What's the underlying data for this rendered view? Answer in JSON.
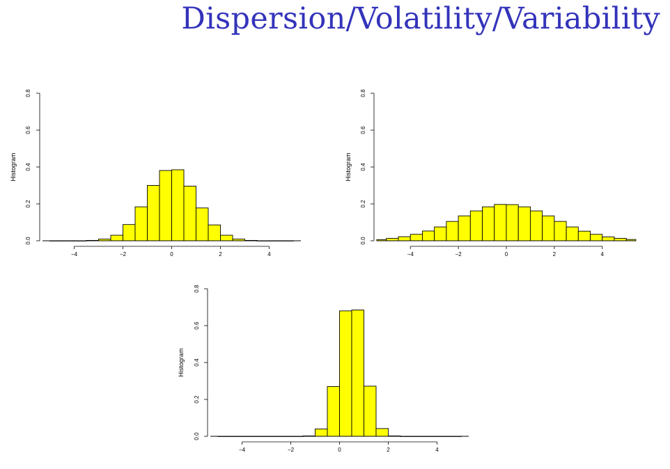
{
  "slide": {
    "title": "Dispersion/Volatility/Variability",
    "title_color": "#3333bb"
  },
  "chart_data": [
    {
      "type": "bar",
      "ylabel": "Histogram",
      "xlabel": "",
      "bar_color": "#ffff00",
      "xlim": [
        -5.3,
        5.3
      ],
      "ylim": [
        0,
        0.8
      ],
      "xticks": [
        -4,
        -2,
        0,
        2,
        4
      ],
      "yticks": [
        0.0,
        0.2,
        0.4,
        0.6,
        0.8
      ],
      "bin_width": 0.5,
      "bins_start": [
        -5.0,
        -4.5,
        -4.0,
        -3.5,
        -3.0,
        -2.5,
        -2.0,
        -1.5,
        -1.0,
        -0.5,
        0.0,
        0.5,
        1.0,
        1.5,
        2.0,
        2.5,
        3.0,
        3.5,
        4.0,
        4.5
      ],
      "values": [
        0.0,
        0.0,
        0.0,
        0.002,
        0.009,
        0.03,
        0.088,
        0.184,
        0.3,
        0.381,
        0.385,
        0.296,
        0.178,
        0.086,
        0.03,
        0.009,
        0.002,
        0.0,
        0.0,
        0.0
      ]
    },
    {
      "type": "bar",
      "ylabel": "Histogram",
      "xlabel": "",
      "bar_color": "#ffff00",
      "xlim": [
        -5.4,
        5.4
      ],
      "ylim": [
        0,
        0.8
      ],
      "xticks": [
        -4,
        -2,
        0,
        2,
        4
      ],
      "yticks": [
        0.0,
        0.2,
        0.4,
        0.6,
        0.8
      ],
      "bin_width": 0.5,
      "bins_start": [
        -5.5,
        -5.0,
        -4.5,
        -4.0,
        -3.5,
        -3.0,
        -2.5,
        -2.0,
        -1.5,
        -1.0,
        -0.5,
        0.0,
        0.5,
        1.0,
        1.5,
        2.0,
        2.5,
        3.0,
        3.5,
        4.0,
        4.5,
        5.0
      ],
      "values": [
        0.006,
        0.013,
        0.022,
        0.035,
        0.053,
        0.075,
        0.105,
        0.135,
        0.162,
        0.184,
        0.197,
        0.196,
        0.184,
        0.162,
        0.135,
        0.105,
        0.075,
        0.052,
        0.035,
        0.021,
        0.013,
        0.007
      ]
    },
    {
      "type": "bar",
      "ylabel": "Histogram",
      "xlabel": "",
      "bar_color": "#ffff00",
      "xlim": [
        -5.3,
        5.3
      ],
      "ylim": [
        0,
        0.8
      ],
      "xticks": [
        -4,
        -2,
        0,
        2,
        4
      ],
      "yticks": [
        0.0,
        0.2,
        0.4,
        0.6,
        0.8
      ],
      "bin_width": 0.5,
      "bins_start": [
        -5.0,
        -4.5,
        -4.0,
        -3.5,
        -3.0,
        -2.5,
        -2.0,
        -1.5,
        -1.0,
        -0.5,
        0.0,
        0.5,
        1.0,
        1.5,
        2.0,
        2.5,
        3.0,
        3.5,
        4.0,
        4.5
      ],
      "values": [
        0.0,
        0.0,
        0.0,
        0.0,
        0.0,
        0.0,
        0.0,
        0.002,
        0.04,
        0.27,
        0.68,
        0.685,
        0.272,
        0.042,
        0.002,
        0.0,
        0.0,
        0.0,
        0.0,
        0.0
      ]
    }
  ]
}
